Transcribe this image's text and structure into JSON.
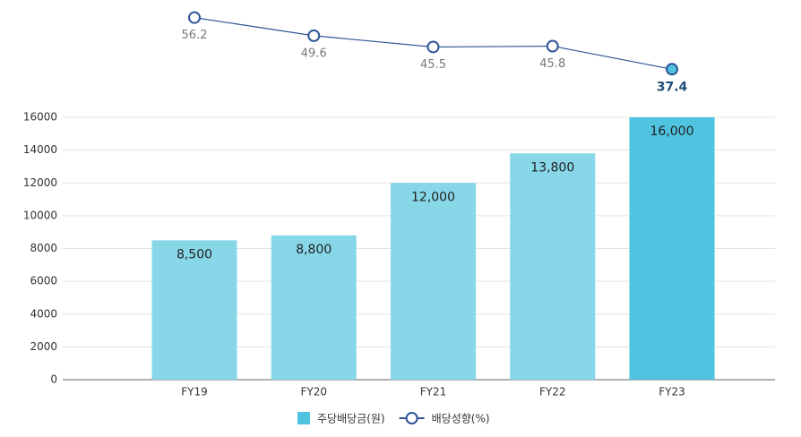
{
  "chart_data": {
    "type": "bar",
    "categories": [
      "FY19",
      "FY20",
      "FY21",
      "FY22",
      "FY23"
    ],
    "series": [
      {
        "name": "주당배당금(원)",
        "type": "bar",
        "color": "#4fc3df",
        "colors": [
          "#88d7e9",
          "#88d7e9",
          "#88d7e9",
          "#88d7e9",
          "#4fc3df"
        ],
        "values": [
          8500,
          8800,
          12000,
          13800,
          16000
        ],
        "value_labels": [
          "8,500",
          "8,800",
          "12,000",
          "13,800",
          "16,000"
        ]
      },
      {
        "name": "배당성향(%)",
        "type": "line",
        "axis": "y2",
        "color": "#2e5597",
        "highlight_color": "#4fc3df",
        "values": [
          56.2,
          49.6,
          45.5,
          45.8,
          37.4
        ]
      }
    ],
    "ylim": [
      0,
      16000
    ],
    "yticks": [
      0,
      2000,
      4000,
      6000,
      8000,
      10000,
      12000,
      14000,
      16000
    ],
    "y2lim": [
      30,
      60
    ],
    "grid": true,
    "legend": "bottom"
  }
}
